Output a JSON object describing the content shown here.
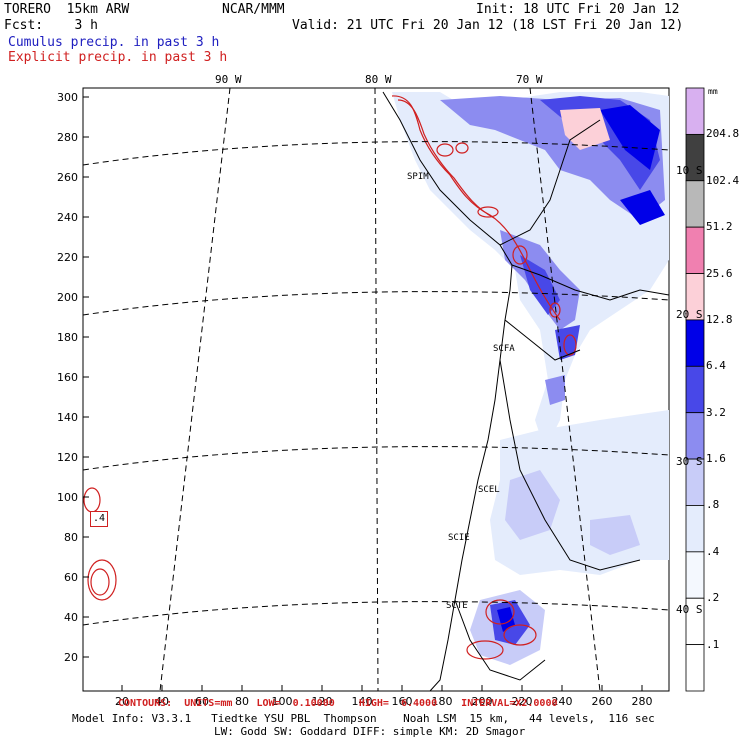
{
  "header": {
    "model": "TORERO  15km ARW",
    "org": "NCAR/MMM",
    "init": "Init: 18 UTC Fri 20 Jan 12",
    "fcst": "Fcst:    3 h",
    "valid": "Valid: 21 UTC Fri 20 Jan 12 (18 LST Fri 20 Jan 12)",
    "line_cumulus": "Cumulus precip. in past 3 h",
    "line_explicit": "Explicit precip. in past 3 h"
  },
  "map": {
    "lon_labels": [
      "90 W",
      "80 W",
      "70 W"
    ],
    "lat_labels": [
      "10 S",
      "20 S",
      "30 S",
      "40 S"
    ],
    "y_ticks": [
      "300",
      "280",
      "260",
      "240",
      "220",
      "200",
      "180",
      "160",
      "140",
      "120",
      "100",
      "80",
      "60",
      "40",
      "20"
    ],
    "x_ticks": [
      "20",
      "40",
      "60",
      "80",
      "100",
      "120",
      "140",
      "160",
      "180",
      "200",
      "220",
      "240",
      "260",
      "280"
    ],
    "stations": [
      "SPIM",
      "SCFA",
      "SCEL",
      "SCIE",
      "SCTE"
    ],
    "contour_value_label": ".4"
  },
  "colorbar": {
    "unit": "mm",
    "levels": [
      "204.8",
      "102.4",
      "51.2",
      "25.6",
      "12.8",
      "6.4",
      "3.2",
      "1.6",
      ".8",
      ".4",
      ".2",
      ".1"
    ],
    "colors": [
      "#d8b0f0",
      "#404040",
      "#b8b8b8",
      "#f080b0",
      "#fcd0d8",
      "#0000e8",
      "#4848e8",
      "#8c8cf0",
      "#c8ccf8",
      "#e4ecfc",
      "#f4f8fe",
      "#ffffff",
      "#ffffff"
    ]
  },
  "footer": {
    "contours": "CONTOURS:  UNITS=mm    LOW=  0.10000    HIGH=  6.4000    INTERVAL=X2.0000",
    "model_info": "Model Info: V3.3.1   Tiedtke YSU PBL  Thompson    Noah LSM  15 km,   44 levels,  116 sec",
    "model_info2": "LW: Godd SW: Goddard DIFF: simple KM: 2D Smagor"
  }
}
